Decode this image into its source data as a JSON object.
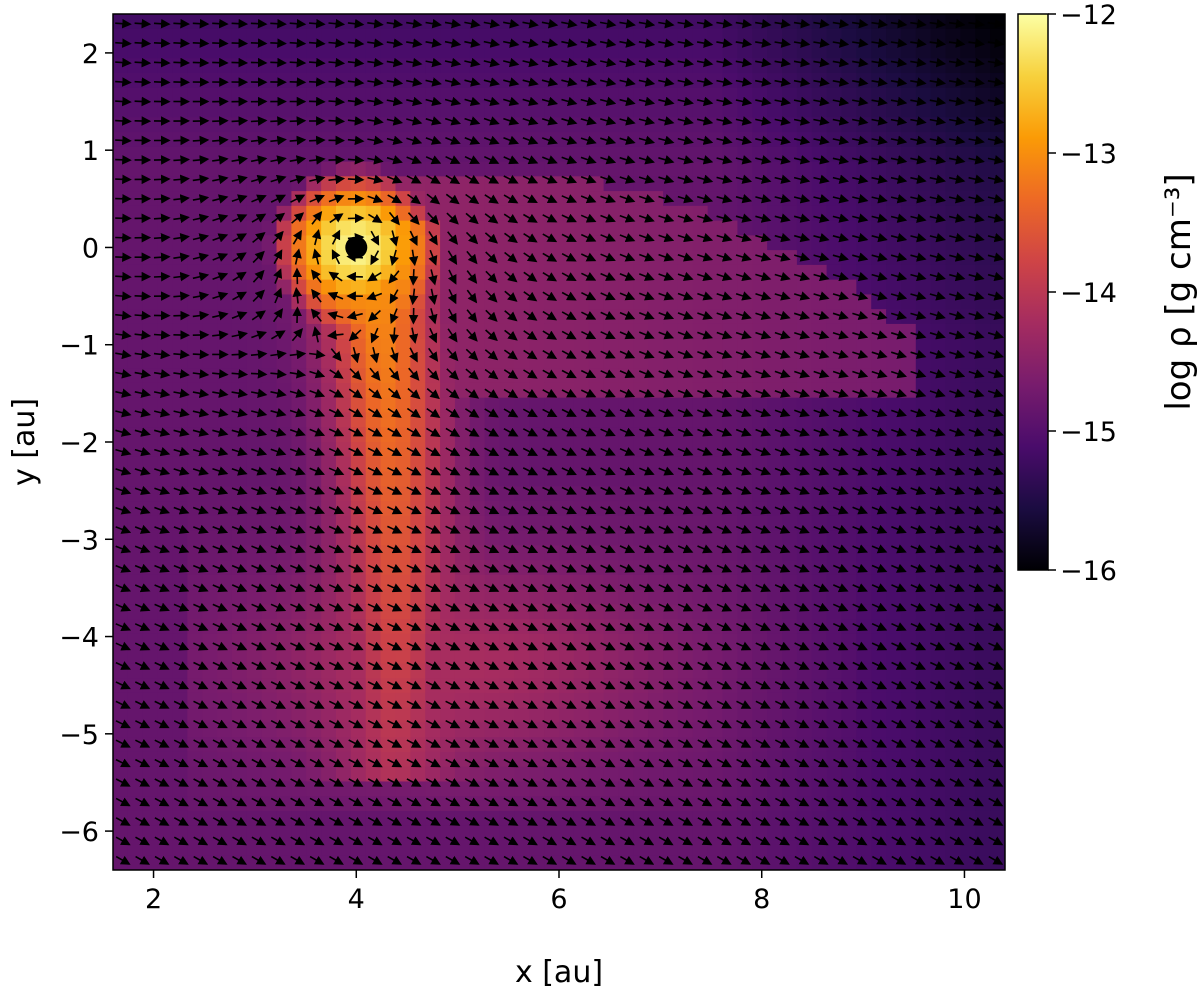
{
  "chart_data": {
    "type": "heatmap",
    "description_of_plot": null,
    "xlabel": "x [au]",
    "ylabel": "y [au]",
    "xlim": [
      1.6,
      10.4
    ],
    "ylim": [
      -6.4,
      2.4
    ],
    "x_ticks": [
      2,
      4,
      6,
      8,
      10
    ],
    "x_tick_labels": [
      "2",
      "4",
      "6",
      "8",
      "10"
    ],
    "y_ticks": [
      2,
      1,
      0,
      -1,
      -2,
      -3,
      -4,
      -5,
      -6
    ],
    "y_tick_labels": [
      "2",
      "1",
      "0",
      "−1",
      "−2",
      "−3",
      "−4",
      "−5",
      "−6"
    ],
    "colorbar": {
      "label": "log ρ [g cm⁻³]",
      "range": [
        -16,
        -12
      ],
      "ticks": [
        -12,
        -13,
        -14,
        -15,
        -16
      ],
      "tick_labels": [
        "−12",
        "−13",
        "−14",
        "−15",
        "−16"
      ],
      "colormap": "inferno",
      "colors": [
        "#000004",
        "#1b0c41",
        "#4a0c6b",
        "#781c6d",
        "#a52c60",
        "#cf4446",
        "#ed6925",
        "#fb9b06",
        "#f7d13d",
        "#fcffa4"
      ]
    },
    "planet": {
      "x": 4.0,
      "y": 0.0
    },
    "overlay": "velocity vector field (quiver arrows)",
    "density_field_features": [
      {
        "feature": "background",
        "x": 1.6,
        "y": 2.4,
        "log_rho": -14.9
      },
      {
        "feature": "dense circumplanetary region",
        "x": 4.0,
        "y": 0.0,
        "log_rho": -12.1
      },
      {
        "feature": "spiral wake",
        "x": 4.3,
        "y": -1.5,
        "log_rho": -13.3
      },
      {
        "feature": "wake lower",
        "x": 4.8,
        "y": -4.5,
        "log_rho": -14.1
      },
      {
        "feature": "low-density outer region",
        "x": 10.3,
        "y": 1.5,
        "log_rho": -16.0
      }
    ]
  }
}
